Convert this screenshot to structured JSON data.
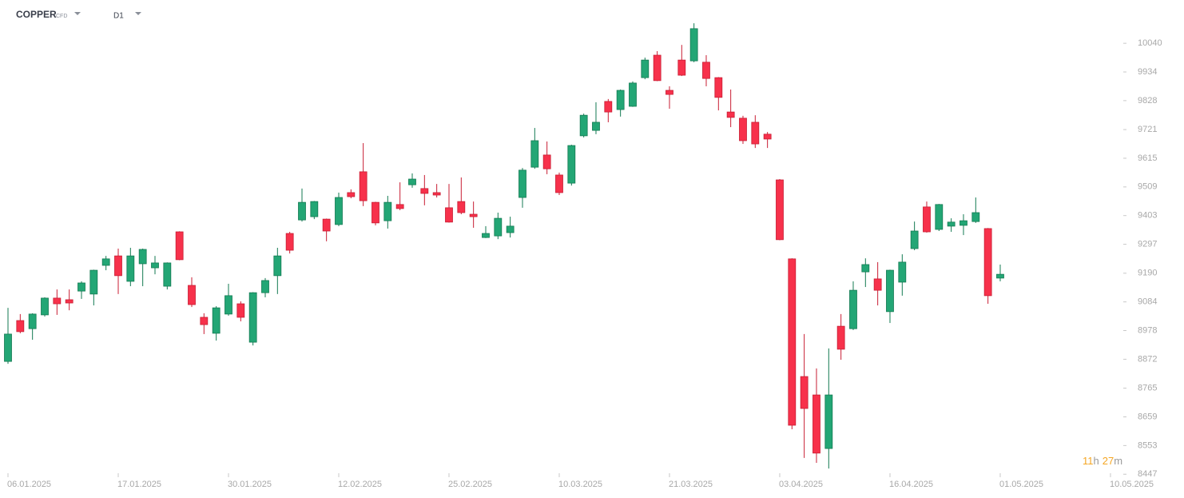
{
  "chart_data": {
    "type": "candlestick",
    "symbol": "COPPER",
    "instrument": "CFD",
    "timeframe": "D1",
    "countdown": {
      "hours": "11",
      "hours_unit": "h",
      "minutes": "27",
      "minutes_unit": "m"
    },
    "up_color": "#23a675",
    "up_border": "#137a52",
    "down_color": "#f7314b",
    "down_border": "#c81d33",
    "categories": [
      "06.01.2025",
      null,
      null,
      null,
      null,
      null,
      null,
      null,
      null,
      "17.01.2025",
      null,
      null,
      null,
      null,
      null,
      null,
      null,
      null,
      "30.01.2025",
      null,
      null,
      null,
      null,
      null,
      null,
      null,
      null,
      "12.02.2025",
      null,
      null,
      null,
      null,
      null,
      null,
      null,
      null,
      "25.02.2025",
      null,
      null,
      null,
      null,
      null,
      null,
      null,
      null,
      "10.03.2025",
      null,
      null,
      null,
      null,
      null,
      null,
      null,
      null,
      "21.03.2025",
      null,
      null,
      null,
      null,
      null,
      null,
      null,
      null,
      "03.04.2025",
      null,
      null,
      null,
      null,
      null,
      null,
      null,
      null,
      "16.04.2025",
      null,
      null,
      null,
      null,
      null,
      null,
      null,
      null,
      "01.05.2025",
      null,
      null,
      null,
      null,
      null,
      null,
      null,
      null,
      "10.05.2025"
    ],
    "open": [
      8864,
      9015,
      8985,
      9036,
      9098,
      9092,
      9124,
      9113,
      9219,
      9254,
      9160,
      9225,
      9210,
      9142,
      9343,
      9145,
      9027,
      8968,
      9039,
      9077,
      8935,
      9118,
      9181,
      9337,
      9387,
      9399,
      9390,
      9370,
      9488,
      9565,
      9452,
      9384,
      9444,
      9517,
      9503,
      9488,
      9432,
      9455,
      9408,
      9322,
      9328,
      9340,
      9470,
      9582,
      9627,
      9553,
      9523,
      9698,
      9718,
      9825,
      9795,
      9807,
      9913,
      9996,
      9866,
      9978,
      9975,
      9970,
      9913,
      9786,
      9763,
      9748,
      9704,
      9535,
      9243,
      8808,
      8740,
      8542,
      8994,
      8985,
      9195,
      9169,
      9048,
      9157,
      9281,
      9435,
      9352,
      9364,
      9367,
      9381,
      9355,
      9172,
      null,
      null,
      null,
      null,
      null,
      null,
      null,
      null,
      null
    ],
    "high": [
      9062,
      9039,
      9042,
      9101,
      9130,
      9130,
      9160,
      9203,
      9254,
      9281,
      9284,
      9281,
      9254,
      9230,
      9345,
      9175,
      9042,
      9068,
      9151,
      9086,
      9120,
      9172,
      9284,
      9343,
      9503,
      9457,
      9392,
      9488,
      9500,
      9671,
      9454,
      9476,
      9526,
      9559,
      9553,
      9520,
      9520,
      9544,
      9455,
      9364,
      9414,
      9399,
      9579,
      9727,
      9677,
      9562,
      9665,
      9780,
      9822,
      9834,
      9869,
      9899,
      9987,
      10011,
      9881,
      10034,
      10114,
      9996,
      9915,
      9869,
      9772,
      9774,
      9712,
      9538,
      9245,
      8965,
      8838,
      8912,
      9039,
      9160,
      9245,
      9231,
      9203,
      9260,
      9381,
      9455,
      9446,
      9393,
      9408,
      9470,
      9357,
      9222,
      null,
      null,
      null,
      null,
      null,
      null,
      null,
      null,
      null
    ],
    "low": [
      8855,
      8968,
      8944,
      9030,
      9036,
      9053,
      9095,
      9071,
      9201,
      9113,
      9142,
      9142,
      9186,
      9130,
      9238,
      9065,
      8965,
      8941,
      9033,
      9012,
      8923,
      9101,
      9113,
      9263,
      9381,
      9390,
      9308,
      9364,
      9467,
      9438,
      9367,
      9355,
      9423,
      9506,
      9441,
      9470,
      9377,
      9408,
      9358,
      9320,
      9316,
      9322,
      9432,
      9576,
      9556,
      9479,
      9514,
      9692,
      9704,
      9748,
      9769,
      9805,
      9907,
      9900,
      9798,
      9919,
      9970,
      9881,
      9792,
      9730,
      9668,
      9653,
      9653,
      9312,
      8613,
      8507,
      8489,
      8468,
      8870,
      8980,
      9139,
      9071,
      9006,
      9107,
      9275,
      9340,
      9346,
      9343,
      9331,
      9376,
      9077,
      9160,
      null,
      null,
      null,
      null,
      null,
      null,
      null,
      null,
      null
    ],
    "close": [
      8965,
      8974,
      9039,
      9098,
      9077,
      9080,
      9154,
      9201,
      9243,
      9181,
      9254,
      9278,
      9228,
      9228,
      9240,
      9074,
      9000,
      9062,
      9107,
      9027,
      9118,
      9163,
      9254,
      9275,
      9452,
      9455,
      9346,
      9470,
      9473,
      9458,
      9376,
      9452,
      9429,
      9538,
      9485,
      9479,
      9379,
      9414,
      9399,
      9337,
      9393,
      9364,
      9571,
      9680,
      9576,
      9488,
      9662,
      9774,
      9748,
      9786,
      9866,
      9893,
      9978,
      9902,
      9851,
      9922,
      10094,
      9910,
      9840,
      9766,
      9680,
      9668,
      9686,
      9314,
      8628,
      8690,
      8525,
      8740,
      8909,
      9127,
      9222,
      9127,
      9201,
      9231,
      9346,
      9343,
      9444,
      9379,
      9384,
      9414,
      9107,
      9186,
      null,
      null,
      null,
      null,
      null,
      null,
      null,
      null,
      null
    ],
    "ylim": [
      8427,
      10200
    ],
    "yticks": [
      8447,
      8553,
      8659,
      8765,
      8872,
      8978,
      9084,
      9190,
      9297,
      9403,
      9509,
      9615,
      9721,
      9828,
      9934,
      10040
    ]
  }
}
